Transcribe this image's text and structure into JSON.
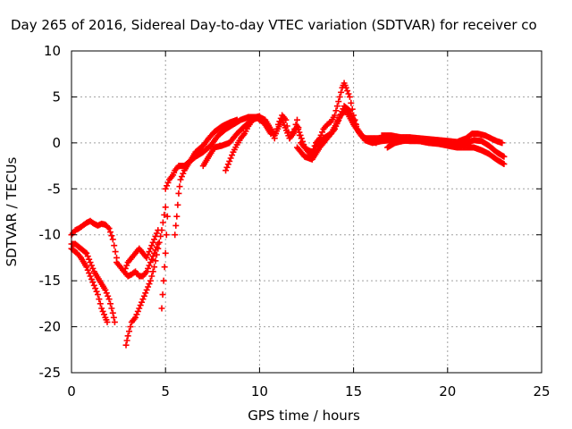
{
  "chart_data": {
    "type": "scatter",
    "title": "Day 265 of 2016, Sidereal Day-to-day VTEC variation (SDTVAR) for receiver co",
    "xlabel": "GPS time / hours",
    "ylabel": "SDTVAR / TECUs",
    "xlim": [
      0,
      25
    ],
    "ylim": [
      -25,
      10
    ],
    "xticks": [
      0,
      5,
      10,
      15,
      20,
      25
    ],
    "yticks": [
      -25,
      -20,
      -15,
      -10,
      -5,
      0,
      5,
      10
    ],
    "grid": true,
    "marker": "plus",
    "color": "#ff0000",
    "series": [
      {
        "tracks": [
          {
            "x": [
              0.0,
              0.2,
              0.4,
              0.6,
              0.8,
              1.0,
              1.2,
              1.4,
              1.6,
              1.8,
              2.0,
              2.2,
              2.4
            ],
            "y": [
              -10.0,
              -9.5,
              -9.3,
              -9.0,
              -8.7,
              -8.5,
              -8.8,
              -9.0,
              -8.8,
              -8.9,
              -9.3,
              -10.5,
              -12.5
            ]
          },
          {
            "x": [
              0.0,
              0.3,
              0.5,
              0.8,
              1.0,
              1.2,
              1.4,
              1.6,
              1.8,
              1.9
            ],
            "y": [
              -11.5,
              -12.0,
              -12.5,
              -13.5,
              -14.5,
              -15.5,
              -16.5,
              -18.0,
              -19.0,
              -19.5
            ]
          },
          {
            "x": [
              0.0,
              0.2,
              0.5,
              0.8,
              1.0,
              1.2,
              1.5,
              1.8,
              2.0,
              2.2,
              2.3
            ],
            "y": [
              -11.0,
              -11.0,
              -11.5,
              -12.0,
              -13.0,
              -14.0,
              -15.0,
              -16.0,
              -17.0,
              -18.5,
              -19.5
            ]
          },
          {
            "x": [
              2.4,
              2.6,
              2.8,
              3.0,
              3.2,
              3.4,
              3.6,
              3.8,
              4.0,
              4.2,
              4.4,
              4.6
            ],
            "y": [
              -13.0,
              -13.5,
              -14.0,
              -14.5,
              -14.3,
              -14.0,
              -14.5,
              -14.5,
              -14.0,
              -13.0,
              -12.0,
              -11.0
            ]
          },
          {
            "x": [
              2.8,
              3.0,
              3.2,
              3.4,
              3.6,
              3.8,
              4.0,
              4.2,
              4.4,
              4.6
            ],
            "y": [
              -14.0,
              -13.0,
              -12.5,
              -12.0,
              -11.5,
              -12.0,
              -12.5,
              -11.5,
              -10.5,
              -9.5
            ]
          },
          {
            "x": [
              2.9,
              3.0,
              3.2,
              3.4,
              3.6,
              3.8,
              4.0,
              4.2,
              4.4,
              4.6,
              4.8,
              5.0
            ],
            "y": [
              -22.0,
              -21.0,
              -19.5,
              -19.0,
              -18.0,
              -17.0,
              -16.0,
              -15.0,
              -13.5,
              -11.5,
              -9.5,
              -7.0
            ]
          },
          {
            "x": [
              4.8,
              4.9,
              5.0,
              5.1
            ],
            "y": [
              -18.0,
              -15.0,
              -12.0,
              -8.0
            ]
          },
          {
            "x": [
              5.0,
              5.2,
              5.4,
              5.5,
              5.7,
              6.0,
              6.3,
              6.6,
              7.0,
              7.4,
              7.8,
              8.2,
              8.6,
              9.0,
              9.4,
              9.8,
              10.2,
              10.6
            ],
            "y": [
              -5.0,
              -4.0,
              -3.5,
              -3.0,
              -2.5,
              -2.5,
              -2.0,
              -1.5,
              -1.0,
              -0.3,
              0.8,
              1.5,
              2.0,
              2.5,
              2.8,
              2.8,
              2.3,
              1.0
            ]
          },
          {
            "x": [
              5.5,
              5.6,
              5.7,
              5.8,
              6.0,
              6.3,
              6.6,
              7.0,
              7.3,
              7.6,
              8.0,
              8.4,
              8.8
            ],
            "y": [
              -10.0,
              -8.0,
              -5.5,
              -4.0,
              -3.0,
              -2.0,
              -1.0,
              -0.3,
              0.5,
              1.2,
              1.8,
              2.2,
              2.5
            ]
          },
          {
            "x": [
              7.0,
              7.3,
              7.6,
              8.0,
              8.4,
              8.8,
              9.2,
              9.6,
              10.0
            ],
            "y": [
              -2.5,
              -1.5,
              -0.5,
              -0.3,
              0.0,
              1.0,
              1.8,
              2.5,
              2.8
            ]
          },
          {
            "x": [
              8.2,
              8.4,
              8.6,
              8.8,
              9.0,
              9.2,
              9.4,
              9.6,
              9.8,
              10.0
            ],
            "y": [
              -3.0,
              -2.0,
              -1.0,
              -0.2,
              0.5,
              1.0,
              1.8,
              2.4,
              2.8,
              2.9
            ]
          },
          {
            "x": [
              10.0,
              10.3,
              10.6,
              10.8,
              11.0,
              11.2,
              11.4,
              11.6,
              11.8,
              12.0,
              12.2,
              12.4,
              12.6,
              12.8,
              13.0,
              13.2,
              13.4,
              13.6,
              13.8,
              14.0,
              14.2,
              14.4,
              14.5,
              14.6,
              14.8,
              15.0,
              15.2,
              15.4,
              15.6,
              15.8,
              16.0,
              16.5,
              17.0
            ],
            "y": [
              2.8,
              2.5,
              1.5,
              0.5,
              2.0,
              3.0,
              2.5,
              0.5,
              1.0,
              2.5,
              0.0,
              -0.5,
              -0.8,
              -1.0,
              0.0,
              0.5,
              1.5,
              2.0,
              2.3,
              3.0,
              4.5,
              6.0,
              6.5,
              6.0,
              5.0,
              3.0,
              1.5,
              0.8,
              0.5,
              0.5,
              0.5,
              0.5,
              0.5
            ]
          },
          {
            "x": [
              10.0,
              10.4,
              10.8,
              11.2,
              11.6,
              12.0,
              12.4,
              12.8,
              13.0,
              13.4,
              13.8,
              14.2,
              14.5,
              14.8,
              15.2,
              15.6,
              16.0,
              16.5,
              17.0
            ],
            "y": [
              2.5,
              2.0,
              0.8,
              2.5,
              0.5,
              1.8,
              -0.5,
              -1.5,
              -0.3,
              0.5,
              1.0,
              2.5,
              4.0,
              3.5,
              1.5,
              0.3,
              0.0,
              0.2,
              0.3
            ]
          },
          {
            "x": [
              12.0,
              12.4,
              12.8,
              13.2,
              13.6,
              14.0,
              14.3,
              14.6,
              15.0,
              15.4,
              15.8,
              16.2
            ],
            "y": [
              -0.5,
              -1.5,
              -1.8,
              -0.5,
              0.5,
              1.5,
              3.0,
              3.5,
              2.0,
              0.8,
              0.3,
              0.0
            ]
          },
          {
            "x": [
              16.5,
              17.0,
              17.5,
              18.0,
              18.5,
              19.0,
              19.5,
              20.0,
              20.5,
              21.0,
              21.3,
              21.6,
              22.0,
              22.3,
              22.6,
              22.9
            ],
            "y": [
              0.8,
              0.8,
              0.6,
              0.6,
              0.5,
              0.4,
              0.3,
              0.2,
              0.1,
              0.5,
              1.0,
              1.0,
              0.8,
              0.5,
              0.2,
              0.0
            ]
          },
          {
            "x": [
              16.5,
              17.0,
              17.5,
              18.0,
              18.5,
              19.0,
              19.5,
              20.0,
              20.5,
              21.0,
              21.4,
              21.8,
              22.2,
              22.6,
              23.0
            ],
            "y": [
              0.3,
              0.4,
              0.3,
              0.2,
              0.2,
              0.1,
              0.0,
              -0.2,
              -0.3,
              0.0,
              0.3,
              0.2,
              -0.3,
              -1.0,
              -1.5
            ]
          },
          {
            "x": [
              16.8,
              17.2,
              17.6,
              18.0,
              18.5,
              19.0,
              19.5,
              20.0,
              20.5,
              21.0,
              21.4,
              21.8,
              22.2,
              22.6,
              23.0
            ],
            "y": [
              -0.5,
              0.0,
              0.2,
              0.3,
              0.2,
              0.0,
              -0.1,
              -0.3,
              -0.5,
              -0.5,
              -0.5,
              -0.8,
              -1.2,
              -1.8,
              -2.3
            ]
          }
        ]
      }
    ]
  }
}
